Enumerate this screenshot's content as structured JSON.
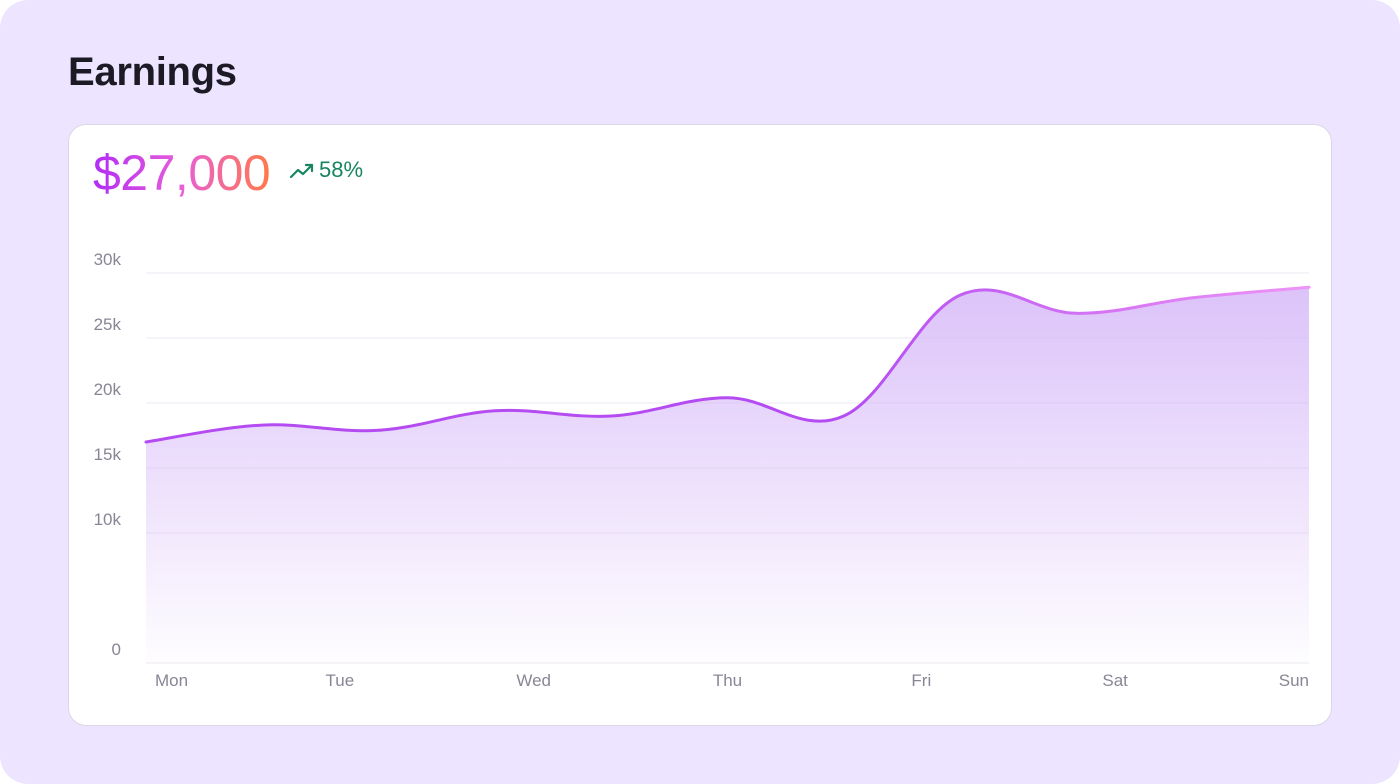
{
  "header": {
    "title": "Earnings"
  },
  "summary": {
    "amount": "$27,000",
    "change": "58%",
    "change_icon": "trending-up-icon",
    "change_color": "#17865f"
  },
  "colors": {
    "background": "#ede4ff",
    "line_start": "#b44cf2",
    "line_end": "#ee94f6",
    "area_fill": "#d6b8f8"
  },
  "chart_data": {
    "type": "area",
    "title": "",
    "xlabel": "",
    "ylabel": "",
    "categories": [
      "Mon",
      "Tue",
      "Wed",
      "Thu",
      "Fri",
      "Sat",
      "Sun"
    ],
    "x": [
      0,
      0.6,
      1.2,
      1.8,
      2.4,
      3.0,
      3.6,
      4.2,
      4.8,
      5.4,
      6.0
    ],
    "values": [
      17000,
      18300,
      17900,
      19400,
      19000,
      20400,
      19000,
      28300,
      26900,
      28100,
      28900
    ],
    "ylim": [
      0,
      30000
    ],
    "yticks": [
      0,
      10000,
      15000,
      20000,
      25000,
      30000
    ],
    "ytick_labels": [
      "0",
      "10k",
      "15k",
      "20k",
      "25k",
      "30k"
    ],
    "grid": true,
    "smooth": true,
    "fill": "gradient"
  }
}
